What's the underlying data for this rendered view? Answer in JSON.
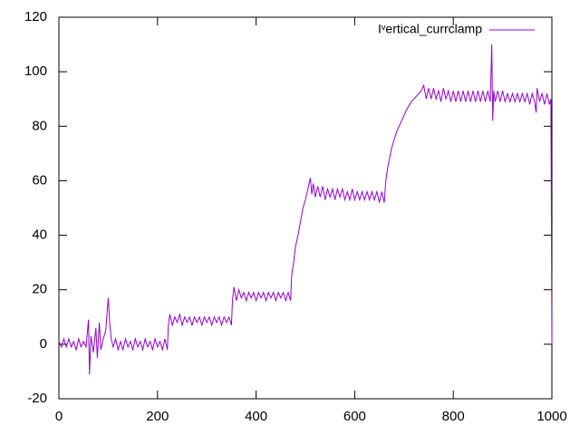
{
  "chart_data": {
    "type": "line",
    "x": [
      0,
      5,
      10,
      15,
      20,
      25,
      30,
      35,
      40,
      45,
      50,
      55,
      60,
      62,
      65,
      70,
      75,
      78,
      82,
      85,
      90,
      95,
      100,
      103,
      106,
      110,
      115,
      120,
      125,
      130,
      135,
      140,
      145,
      150,
      155,
      160,
      165,
      170,
      175,
      180,
      185,
      190,
      195,
      200,
      205,
      210,
      215,
      220,
      222,
      225,
      230,
      235,
      240,
      245,
      250,
      255,
      260,
      265,
      270,
      275,
      280,
      285,
      290,
      295,
      300,
      305,
      310,
      315,
      320,
      325,
      330,
      335,
      340,
      345,
      350,
      352,
      355,
      360,
      365,
      370,
      375,
      380,
      385,
      390,
      395,
      400,
      405,
      410,
      415,
      420,
      425,
      430,
      435,
      440,
      445,
      450,
      455,
      460,
      465,
      470,
      472,
      476,
      480,
      485,
      490,
      495,
      500,
      505,
      510,
      513,
      516,
      520,
      525,
      530,
      535,
      540,
      545,
      550,
      555,
      560,
      565,
      570,
      575,
      580,
      585,
      590,
      595,
      600,
      605,
      610,
      615,
      620,
      625,
      630,
      635,
      640,
      645,
      650,
      655,
      660,
      663,
      668,
      675,
      685,
      695,
      705,
      715,
      725,
      735,
      740,
      745,
      750,
      755,
      760,
      765,
      770,
      775,
      780,
      785,
      790,
      795,
      800,
      805,
      810,
      815,
      820,
      825,
      830,
      835,
      840,
      845,
      850,
      855,
      860,
      865,
      870,
      875,
      878,
      880,
      882,
      885,
      890,
      895,
      900,
      905,
      910,
      915,
      920,
      925,
      930,
      935,
      940,
      945,
      950,
      955,
      960,
      965,
      968,
      970,
      975,
      980,
      985,
      990,
      995,
      998,
      1000
    ],
    "series": [
      {
        "name": "Iᵛertical_currclamp",
        "color": "#9400d3",
        "values": [
          1,
          -1,
          2,
          -1,
          2,
          -1,
          1,
          -2,
          2,
          -1,
          1,
          -1,
          9,
          -11,
          3,
          -3,
          6,
          -5,
          8,
          -2,
          2,
          5,
          17,
          8,
          2,
          -1,
          2,
          -2,
          1,
          -2,
          2,
          -1,
          1,
          -2,
          2,
          -1,
          1,
          -2,
          2,
          -1,
          1,
          -2,
          2,
          -1,
          1,
          -2,
          2,
          -2,
          7,
          11,
          7,
          10,
          8,
          11,
          7,
          10,
          8,
          10,
          7,
          10,
          8,
          10,
          7,
          10,
          8,
          10,
          7,
          10,
          8,
          10,
          7,
          10,
          8,
          10,
          7,
          16,
          21,
          16,
          20,
          17,
          19,
          16,
          19,
          17,
          19,
          16,
          19,
          17,
          19,
          16,
          19,
          17,
          19,
          16,
          19,
          17,
          19,
          16,
          19,
          16,
          25,
          30,
          36,
          40,
          45,
          50,
          53,
          57,
          61,
          55,
          59,
          54,
          58,
          54,
          58,
          53,
          57,
          54,
          57,
          53,
          57,
          54,
          57,
          53,
          56,
          53,
          57,
          53,
          56,
          53,
          56,
          53,
          56,
          53,
          56,
          53,
          56,
          52,
          56,
          52,
          60,
          66,
          72,
          78,
          82,
          86,
          89,
          91,
          93,
          95,
          90,
          94,
          90,
          94,
          90,
          93,
          89,
          94,
          90,
          93,
          89,
          93,
          89,
          93,
          89,
          93,
          89,
          93,
          89,
          93,
          89,
          93,
          89,
          93,
          89,
          93,
          89,
          110,
          82,
          93,
          89,
          93,
          89,
          93,
          89,
          92,
          89,
          92,
          89,
          92,
          89,
          92,
          89,
          92,
          88,
          92,
          89,
          85,
          94,
          89,
          92,
          88,
          92,
          88,
          90,
          0
        ]
      }
    ],
    "xlim": [
      0,
      1000
    ],
    "xticks": [
      0,
      200,
      400,
      600,
      800,
      1000
    ],
    "ylim": [
      -20,
      120
    ],
    "yticks": [
      -20,
      0,
      20,
      40,
      60,
      80,
      100,
      120
    ],
    "grid": false,
    "legend": "top-right"
  }
}
